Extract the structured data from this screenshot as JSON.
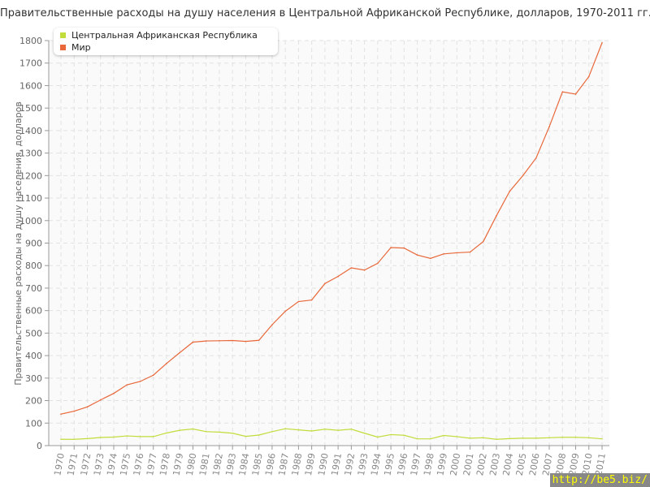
{
  "chart_data": {
    "type": "line",
    "title": "Правительственные расходы на душу населения в Центральной Африканской Республике, долларов, 1970-2011 гг.",
    "ylabel": "Правительственные расходы на душу населения, долларов",
    "xlabel": "",
    "ylim": [
      0,
      1800
    ],
    "yticks": [
      0,
      100,
      200,
      300,
      400,
      500,
      600,
      700,
      800,
      900,
      1000,
      1100,
      1200,
      1300,
      1400,
      1500,
      1600,
      1700,
      1800
    ],
    "grid": true,
    "legend_position": "top-left",
    "x": [
      1970,
      1971,
      1972,
      1973,
      1974,
      1975,
      1976,
      1977,
      1978,
      1979,
      1980,
      1981,
      1982,
      1983,
      1984,
      1985,
      1986,
      1987,
      1988,
      1989,
      1990,
      1991,
      1992,
      1993,
      1994,
      1995,
      1996,
      1997,
      1998,
      1999,
      2000,
      2001,
      2002,
      2003,
      2004,
      2005,
      2006,
      2007,
      2008,
      2009,
      2010,
      2011
    ],
    "series": [
      {
        "name": "Центральная Африканская Республика",
        "color": "#c0dd3c",
        "values": [
          28,
          28,
          31,
          36,
          38,
          43,
          40,
          40,
          56,
          68,
          74,
          62,
          60,
          55,
          41,
          47,
          62,
          75,
          70,
          65,
          73,
          68,
          73,
          55,
          38,
          49,
          46,
          30,
          30,
          45,
          40,
          33,
          35,
          28,
          31,
          33,
          33,
          35,
          37,
          37,
          35,
          30
        ]
      },
      {
        "name": "Мир",
        "color": "#e8683a",
        "values": [
          140,
          153,
          172,
          203,
          232,
          270,
          285,
          313,
          365,
          413,
          460,
          465,
          466,
          467,
          463,
          468,
          537,
          597,
          640,
          647,
          720,
          752,
          790,
          780,
          810,
          880,
          878,
          847,
          832,
          852,
          857,
          860,
          907,
          1022,
          1130,
          1200,
          1278,
          1417,
          1572,
          1562,
          1640,
          1790
        ]
      }
    ]
  },
  "watermark": "http://be5.biz/"
}
